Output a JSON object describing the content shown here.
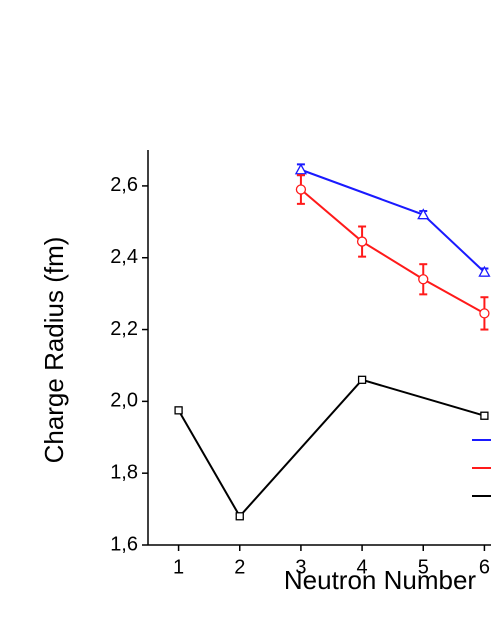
{
  "chart_data": {
    "type": "line",
    "xlabel": "Neutron Number",
    "ylabel": "Charge Radius (fm)",
    "xlim": [
      0.5,
      6.5
    ],
    "xticks": [
      1,
      2,
      3,
      4,
      5,
      6
    ],
    "ylim": [
      1.6,
      2.7
    ],
    "yticks": [
      {
        "value": 1.6,
        "label": "1,6"
      },
      {
        "value": 1.8,
        "label": "1,8"
      },
      {
        "value": 2.0,
        "label": "2,0"
      },
      {
        "value": 2.2,
        "label": "2,2"
      },
      {
        "value": 2.4,
        "label": "2,4"
      },
      {
        "value": 2.6,
        "label": "2,6"
      }
    ],
    "series": [
      {
        "color": "#1a1aff",
        "marker": "triangle",
        "x": [
          3,
          5,
          6
        ],
        "values": [
          2.645,
          2.52,
          2.36
        ],
        "errors": [
          0.015,
          0.01,
          0.01
        ]
      },
      {
        "color": "#ff1a1a",
        "marker": "circle",
        "x": [
          3,
          4,
          5,
          6
        ],
        "values": [
          2.59,
          2.445,
          2.34,
          2.245
        ],
        "errors": [
          0.04,
          0.042,
          0.042,
          0.045
        ]
      },
      {
        "color": "#000000",
        "marker": "square",
        "x": [
          1,
          2,
          4,
          6
        ],
        "values": [
          1.975,
          1.68,
          2.06,
          1.96
        ],
        "errors": [
          0.006,
          0.006,
          0.006,
          0.008
        ]
      }
    ]
  }
}
